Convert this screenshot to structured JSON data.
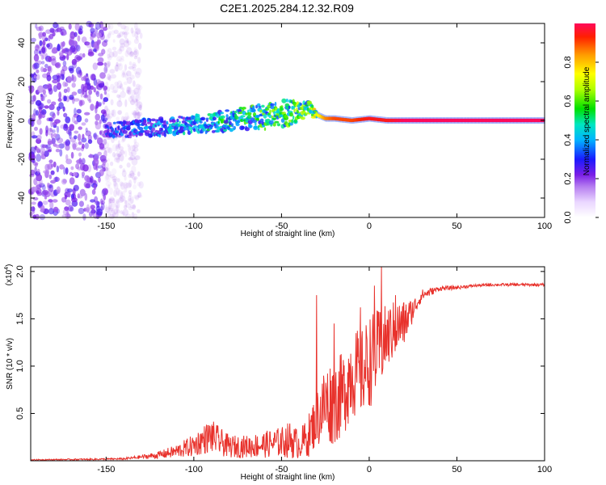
{
  "title": "C2E1.2025.284.12.32.R09",
  "colors": {
    "snr_line": "#e8322c",
    "background": "#ffffff",
    "axis": "#000000"
  },
  "colorbar": {
    "label": "Normalized spectral amplitude",
    "ticks": [
      "0.0",
      "0.2",
      "0.4",
      "0.6",
      "0.8"
    ],
    "tick_values": [
      0,
      0.2,
      0.4,
      0.6,
      0.8
    ],
    "range": [
      0,
      1
    ]
  },
  "chart_data": [
    {
      "type": "heatmap",
      "name": "spectrogram",
      "xlabel": "Height of straight line (km)",
      "ylabel": "Frequency (Hz)",
      "xlim": [
        -193,
        100
      ],
      "ylim": [
        -50,
        50
      ],
      "xticks": [
        -150,
        -100,
        -50,
        0,
        50,
        100
      ],
      "xtick_labels": [
        "-150",
        "-100",
        "-50",
        "0",
        "50",
        "100"
      ],
      "yticks": [
        -40,
        -20,
        0,
        20,
        40
      ],
      "ytick_labels": [
        "-40",
        "-20",
        "0",
        "20",
        "40"
      ],
      "ridge": {
        "x": [
          -193,
          -150,
          -130,
          -100,
          -80,
          -60,
          -45,
          -35,
          -30,
          -25,
          -20,
          -10,
          0,
          10,
          20,
          50,
          100
        ],
        "center_hz": [
          0,
          -5,
          -4,
          -2,
          0,
          2,
          4,
          6,
          3,
          1,
          1,
          0,
          1,
          0,
          0,
          0,
          0
        ],
        "width_hz": [
          40,
          3,
          4,
          4,
          5,
          6,
          6,
          4,
          2,
          1.5,
          1.5,
          1.2,
          1.2,
          1,
          1,
          1,
          1
        ],
        "amplitude": [
          0.15,
          0.3,
          0.35,
          0.45,
          0.5,
          0.55,
          0.6,
          0.6,
          0.7,
          0.85,
          0.9,
          0.9,
          0.95,
          0.95,
          1.0,
          1.0,
          1.0
        ]
      },
      "noise_region_x": [
        -193,
        -145
      ],
      "noise_amplitude": 0.15
    },
    {
      "type": "line",
      "name": "snr",
      "xlabel": "Height of straight line (km)",
      "ylabel": "SNR (10 * v/v)",
      "y_scale_label": "(x10⁴)",
      "y_scale_prefix": "(x10",
      "y_scale_exponent": "4",
      "y_scale_suffix": ")",
      "xlim": [
        -193,
        100
      ],
      "ylim": [
        0,
        2.05
      ],
      "xticks": [
        -150,
        -100,
        -50,
        0,
        50,
        100
      ],
      "xtick_labels": [
        "-150",
        "-100",
        "-50",
        "0",
        "50",
        "100"
      ],
      "yticks": [
        0.5,
        1.0,
        1.5,
        2.0
      ],
      "ytick_labels": [
        "0.5",
        "1.0",
        "1.5",
        "2.0"
      ],
      "x": [
        -193,
        -160,
        -140,
        -130,
        -120,
        -110,
        -100,
        -95,
        -90,
        -85,
        -80,
        -70,
        -60,
        -50,
        -45,
        -40,
        -35,
        -30,
        -25,
        -20,
        -15,
        -10,
        -5,
        0,
        5,
        10,
        15,
        20,
        25,
        30,
        40,
        50,
        60,
        70,
        80,
        90,
        100
      ],
      "y_mean": [
        0.01,
        0.015,
        0.02,
        0.04,
        0.06,
        0.1,
        0.16,
        0.22,
        0.26,
        0.2,
        0.15,
        0.15,
        0.17,
        0.2,
        0.22,
        0.17,
        0.25,
        0.45,
        0.6,
        0.62,
        0.7,
        0.95,
        0.9,
        1.05,
        1.15,
        1.3,
        1.4,
        1.45,
        1.6,
        1.75,
        1.82,
        1.83,
        1.85,
        1.86,
        1.86,
        1.86,
        1.86
      ],
      "y_jitter": [
        0.005,
        0.008,
        0.01,
        0.02,
        0.04,
        0.07,
        0.12,
        0.15,
        0.18,
        0.15,
        0.12,
        0.12,
        0.14,
        0.16,
        0.2,
        0.15,
        0.22,
        0.3,
        0.45,
        0.45,
        0.45,
        0.5,
        0.45,
        0.5,
        0.45,
        0.35,
        0.3,
        0.25,
        0.12,
        0.06,
        0.025,
        0.02,
        0.015,
        0.015,
        0.015,
        0.015,
        0.015
      ],
      "peaks": [
        {
          "x": -30,
          "y": 1.75
        },
        {
          "x": -20,
          "y": 1.45
        },
        {
          "x": -5,
          "y": 1.62
        },
        {
          "x": 3,
          "y": 1.85
        },
        {
          "x": 7,
          "y": 2.05
        },
        {
          "x": 15,
          "y": 1.75
        }
      ]
    }
  ]
}
